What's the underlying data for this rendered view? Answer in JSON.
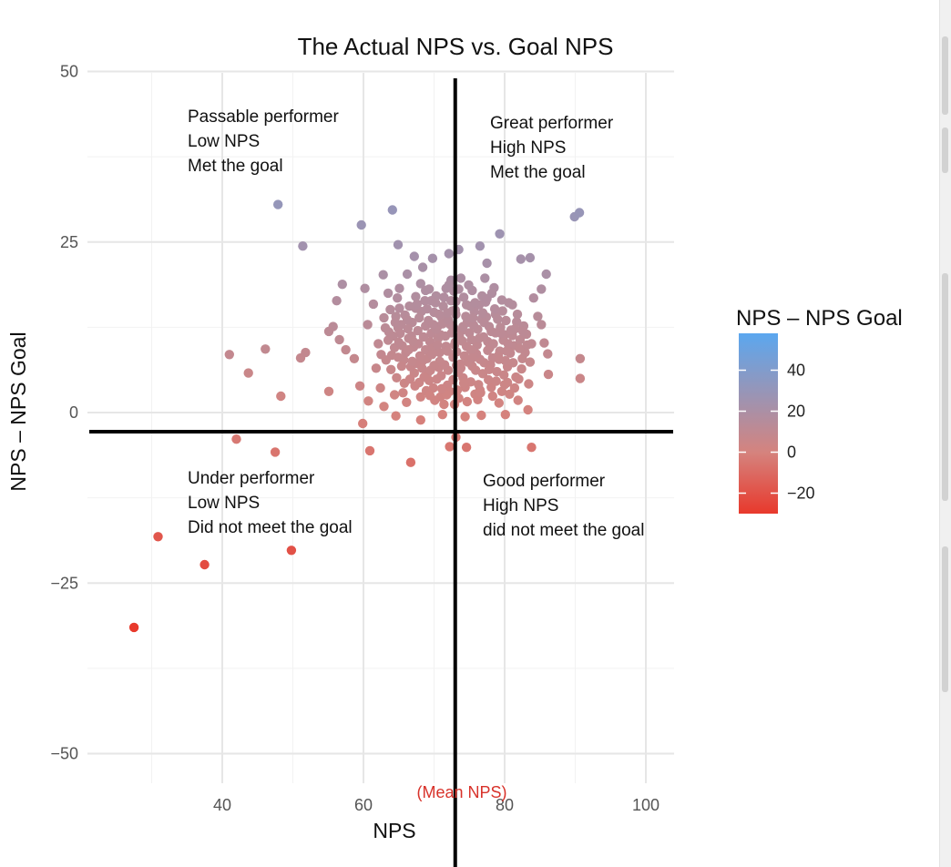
{
  "chart_data": {
    "type": "scatter",
    "title": "The Actual NPS vs. Goal NPS",
    "xlabel": "NPS",
    "ylabel": "NPS – NPS Goal",
    "xlim": [
      30,
      100
    ],
    "ylim": [
      -58,
      50
    ],
    "x_ticks": [
      40,
      60,
      80,
      100
    ],
    "y_ticks": [
      50,
      25,
      0,
      -25,
      -50
    ],
    "x_tick_labels": [
      "40",
      "60",
      "80",
      "100"
    ],
    "y_tick_labels": [
      "50",
      "25",
      "0",
      "−25",
      "−50"
    ],
    "grid": true,
    "mean_nps": 73,
    "mean_label": "(Mean NPS)",
    "horizontal_reference_y": -2.8,
    "legend": {
      "title": "NPS – NPS Goal",
      "placement": "right",
      "min": -30,
      "max": 58,
      "ticks": [
        40,
        20,
        0,
        -20
      ],
      "tick_labels": [
        "40",
        "20",
        "0",
        "−20"
      ],
      "color_low": "#e8392c",
      "color_mid": "#d5837e",
      "color_high": "#5ba7ef"
    },
    "annotations": [
      {
        "quadrant": "top-left",
        "lines": [
          "Passable performer",
          "Low NPS",
          "Met the goal"
        ]
      },
      {
        "quadrant": "top-right",
        "lines": [
          "Great performer",
          "High NPS",
          "Met the goal"
        ]
      },
      {
        "quadrant": "bottom-left",
        "lines": [
          "Under performer",
          "Low NPS",
          "Did not meet the goal"
        ]
      },
      {
        "quadrant": "bottom-right",
        "lines": [
          "Good performer",
          "High NPS",
          "did not meet the goal"
        ]
      }
    ],
    "points": [
      [
        27.5,
        -31.5
      ],
      [
        30.9,
        -18.2
      ],
      [
        37.5,
        -22.3
      ],
      [
        42,
        -3.9
      ],
      [
        47.5,
        -5.8
      ],
      [
        49.8,
        -20.2
      ],
      [
        60.9,
        -5.6
      ],
      [
        66.7,
        -7.3
      ],
      [
        72.2,
        -5
      ],
      [
        73.1,
        -3.6
      ],
      [
        74.6,
        -5.1
      ],
      [
        83.8,
        -5.1
      ],
      [
        41,
        8.5
      ],
      [
        43.7,
        5.8
      ],
      [
        46.1,
        9.3
      ],
      [
        48.3,
        2.4
      ],
      [
        51.1,
        8
      ],
      [
        51.8,
        8.8
      ],
      [
        55.1,
        3.1
      ],
      [
        47.9,
        30.5
      ],
      [
        51.4,
        24.4
      ],
      [
        59.7,
        27.5
      ],
      [
        64.1,
        29.7
      ],
      [
        64.9,
        24.6
      ],
      [
        79.3,
        26.2
      ],
      [
        89.9,
        28.7
      ],
      [
        90.6,
        29.3
      ],
      [
        67.2,
        22.9
      ],
      [
        69.8,
        22.6
      ],
      [
        72.1,
        23.3
      ],
      [
        73.5,
        23.9
      ],
      [
        76.5,
        24.4
      ],
      [
        77.5,
        21.9
      ],
      [
        82.3,
        22.5
      ],
      [
        83.6,
        22.7
      ],
      [
        90.7,
        7.9
      ],
      [
        90.7,
        5
      ],
      [
        59.5,
        3.9
      ],
      [
        60.7,
        1.7
      ],
      [
        62.9,
        0.9
      ],
      [
        64.6,
        -0.5
      ],
      [
        68.1,
        -1.1
      ],
      [
        71.2,
        -0.3
      ],
      [
        74.4,
        -0.6
      ],
      [
        76.7,
        -0.4
      ],
      [
        80.1,
        -0.3
      ],
      [
        83.3,
        0.4
      ],
      [
        59.9,
        -1.6
      ],
      [
        62.4,
        3.6
      ],
      [
        57,
        18.8
      ],
      [
        56.2,
        16.4
      ],
      [
        55.7,
        12.6
      ],
      [
        55.1,
        11.9
      ],
      [
        56.6,
        10.7
      ],
      [
        57.5,
        9.2
      ],
      [
        58.7,
        7.9
      ],
      [
        60.6,
        12.9
      ],
      [
        61.4,
        15.9
      ],
      [
        60.2,
        18.2
      ],
      [
        62.8,
        20.2
      ],
      [
        63.5,
        17.5
      ],
      [
        65.1,
        18.2
      ],
      [
        66.2,
        20.3
      ],
      [
        68.4,
        21.3
      ],
      [
        85.6,
        10.2
      ],
      [
        86.1,
        8.6
      ],
      [
        86.2,
        5.6
      ],
      [
        85.2,
        12.9
      ],
      [
        84.7,
        14.1
      ],
      [
        84.1,
        16.8
      ],
      [
        85.2,
        18.1
      ],
      [
        85.9,
        20.3
      ],
      [
        64.9,
        12.4
      ],
      [
        69.3,
        4.7
      ],
      [
        70.9,
        2.3
      ],
      [
        63.5,
        10.6
      ],
      [
        64.4,
        2.6
      ],
      [
        77.6,
        10.4
      ],
      [
        67.4,
        15.3
      ],
      [
        70.8,
        8.8
      ],
      [
        75.6,
        9.1
      ],
      [
        68.1,
        2.3
      ],
      [
        68.8,
        12.7
      ],
      [
        72.4,
        19.4
      ],
      [
        76.5,
        3.3
      ],
      [
        82.5,
        7.9
      ],
      [
        74.6,
        15.8
      ],
      [
        65.7,
        7.7
      ],
      [
        67.2,
        5.8
      ],
      [
        71.1,
        13.9
      ],
      [
        72.8,
        12.4
      ],
      [
        81.1,
        15.8
      ],
      [
        83.8,
        10.1
      ],
      [
        70.7,
        6.6
      ],
      [
        73,
        10.3
      ],
      [
        78.1,
        3.7
      ],
      [
        80.4,
        6.7
      ],
      [
        66.1,
        1.5
      ],
      [
        75.4,
        17.9
      ],
      [
        79.3,
        9
      ],
      [
        81.9,
        1.8
      ],
      [
        69.6,
        11.6
      ],
      [
        76.2,
        12.2
      ],
      [
        69.3,
        18.1
      ],
      [
        77.1,
        7.3
      ],
      [
        66.4,
        10.9
      ],
      [
        62.5,
        8.5
      ],
      [
        74.1,
        5.1
      ],
      [
        78.7,
        14.4
      ],
      [
        80,
        11.4
      ],
      [
        71.9,
        4
      ],
      [
        67.8,
        10.1
      ],
      [
        80.4,
        4.4
      ],
      [
        76.4,
        15.8
      ],
      [
        63.9,
        6.3
      ],
      [
        78.5,
        18.3
      ],
      [
        73.5,
        2.1
      ],
      [
        70.3,
        17.1
      ],
      [
        65.1,
        15.3
      ],
      [
        81.3,
        9.8
      ],
      [
        75.4,
        6.8
      ],
      [
        82.7,
        12.7
      ],
      [
        68.4,
        7.6
      ],
      [
        71.7,
        9.7
      ],
      [
        73.1,
        14.4
      ],
      [
        79.2,
        1.4
      ],
      [
        66.9,
        13.2
      ],
      [
        64.4,
        9.5
      ],
      [
        77.8,
        12.6
      ],
      [
        69.9,
        3.6
      ],
      [
        72.4,
        16.4
      ],
      [
        83.4,
        4.2
      ],
      [
        75,
        11.7
      ],
      [
        67.4,
        17
      ],
      [
        79.6,
        16.5
      ],
      [
        74.3,
        8.3
      ],
      [
        61.8,
        6.5
      ],
      [
        71.4,
        1.2
      ],
      [
        76.9,
        5.7
      ],
      [
        81.7,
        13.3
      ],
      [
        70,
        14.7
      ],
      [
        73.8,
        19.7
      ],
      [
        65.8,
        4.3
      ],
      [
        78.3,
        8
      ],
      [
        68.8,
        9.2
      ],
      [
        75.8,
        2.7
      ],
      [
        80.8,
        8.7
      ],
      [
        72,
        6.2
      ],
      [
        64.8,
        16.8
      ],
      [
        77.3,
        16.2
      ],
      [
        69.1,
        5.8
      ],
      [
        82.2,
        10.7
      ],
      [
        66.3,
        12.3
      ],
      [
        74.7,
        13.2
      ],
      [
        71.6,
        11.2
      ],
      [
        79.6,
        3.1
      ],
      [
        62.9,
        13.9
      ],
      [
        76.1,
        9.9
      ],
      [
        70.5,
        12.6
      ],
      [
        67.9,
        4.4
      ],
      [
        73.7,
        7.1
      ],
      [
        80.2,
        13.5
      ],
      [
        65.5,
        9.8
      ],
      [
        78.9,
        6
      ],
      [
        72.8,
        17.8
      ],
      [
        68.2,
        14.8
      ],
      [
        75.2,
        4.5
      ],
      [
        81.6,
        5.2
      ],
      [
        70.1,
        1.8
      ],
      [
        77.4,
        14
      ],
      [
        63.6,
        11.8
      ],
      [
        73.2,
        8.9
      ],
      [
        79.8,
        10.6
      ],
      [
        66.7,
        6.7
      ],
      [
        71.3,
        15.6
      ],
      [
        76.5,
        7.8
      ],
      [
        69.4,
        10.4
      ],
      [
        74.9,
        18.7
      ],
      [
        82.9,
        8.8
      ],
      [
        64.6,
        14.1
      ],
      [
        78.1,
        11.9
      ],
      [
        72.2,
        3.1
      ],
      [
        67.7,
        12
      ],
      [
        75.7,
        14.8
      ],
      [
        80.7,
        2.7
      ],
      [
        70.8,
        7.5
      ],
      [
        73.9,
        12
      ],
      [
        65.2,
        11.6
      ],
      [
        77.7,
        4.8
      ],
      [
        69.6,
        16.4
      ],
      [
        83.1,
        11.5
      ],
      [
        71.9,
        9
      ],
      [
        76.8,
        17.1
      ],
      [
        66,
        8.8
      ],
      [
        79,
        13.7
      ],
      [
        74.4,
        3.7
      ],
      [
        68.6,
        5.2
      ],
      [
        81.1,
        11.3
      ],
      [
        72.6,
        14.9
      ],
      [
        63.2,
        7.7
      ],
      [
        75.3,
        10.7
      ],
      [
        70.4,
        4.9
      ],
      [
        78.6,
        15.2
      ],
      [
        67.1,
        9.6
      ],
      [
        73.4,
        5.9
      ],
      [
        80.1,
        7.6
      ],
      [
        65.9,
        14.3
      ],
      [
        76.2,
        1.9
      ],
      [
        71.2,
        13
      ],
      [
        69,
        7.9
      ],
      [
        74.2,
        16.9
      ],
      [
        82.4,
        6.4
      ],
      [
        64.2,
        11.2
      ],
      [
        77.9,
        9.5
      ],
      [
        72.9,
        1.2
      ],
      [
        68.1,
        18.9
      ],
      [
        79.4,
        12.5
      ],
      [
        70.6,
        10.9
      ],
      [
        75.9,
        6.2
      ],
      [
        66.6,
        4.9
      ],
      [
        81.8,
        14.4
      ],
      [
        73.6,
        11.1
      ],
      [
        67.5,
        7.2
      ],
      [
        78.3,
        2.4
      ],
      [
        71.7,
        18.2
      ],
      [
        62.1,
        10.1
      ],
      [
        76.7,
        13.7
      ],
      [
        69.8,
        9.4
      ],
      [
        74.8,
        7.4
      ],
      [
        80.5,
        10.1
      ],
      [
        65.4,
        6.8
      ],
      [
        72.3,
        12.9
      ],
      [
        77.2,
        19.7
      ],
      [
        68.9,
        3.2
      ],
      [
        83.6,
        7.4
      ],
      [
        70.2,
        16.1
      ],
      [
        75.6,
        12.8
      ],
      [
        66.8,
        11.2
      ],
      [
        79.9,
        5.5
      ],
      [
        73.1,
        16.3
      ],
      [
        64,
        8.4
      ],
      [
        71,
        5.4
      ],
      [
        78,
        7
      ],
      [
        69.2,
        13.5
      ],
      [
        81.4,
        3.6
      ],
      [
        74,
        10.5
      ],
      [
        67.6,
        15.9
      ],
      [
        76.3,
        4.1
      ],
      [
        72.7,
        8.1
      ],
      [
        82.1,
        9.4
      ],
      [
        65.6,
        2.9
      ],
      [
        77.5,
        16.7
      ],
      [
        70.9,
        11.4
      ],
      [
        74.5,
        14.1
      ],
      [
        68.5,
        11.1
      ],
      [
        79.1,
        8.3
      ],
      [
        71.5,
        7
      ],
      [
        75.1,
        15.6
      ],
      [
        66.2,
        13.6
      ],
      [
        80.9,
        12.1
      ],
      [
        73.3,
        3.3
      ],
      [
        69.5,
        6.2
      ],
      [
        77,
        11.1
      ],
      [
        64.7,
        5.1
      ],
      [
        72.1,
        18.7
      ],
      [
        78.8,
        4.6
      ],
      [
        70.7,
        14.4
      ],
      [
        76,
        8.6
      ],
      [
        67.3,
        3.9
      ],
      [
        82.6,
        11.9
      ],
      [
        74.6,
        9.7
      ],
      [
        68.7,
        16.4
      ],
      [
        73.8,
        6.5
      ],
      [
        79.7,
        14.9
      ],
      [
        65.3,
        12.9
      ],
      [
        71.8,
        2.6
      ],
      [
        75.5,
        13.9
      ],
      [
        69.7,
        8.5
      ],
      [
        80.3,
        9
      ],
      [
        72.5,
        11.7
      ],
      [
        66.5,
        15.6
      ],
      [
        77.8,
        6.3
      ],
      [
        63.1,
        12.4
      ],
      [
        74.2,
        4.3
      ],
      [
        70.3,
        12.2
      ],
      [
        78.4,
        10.1
      ],
      [
        68.3,
        6.5
      ],
      [
        81.2,
        7.3
      ],
      [
        73,
        15
      ],
      [
        67,
        10.5
      ],
      [
        76.6,
        2.9
      ],
      [
        71.4,
        16.9
      ],
      [
        79.5,
        11.6
      ],
      [
        64.9,
        8.1
      ],
      [
        75.2,
        9.2
      ],
      [
        69,
        15.2
      ],
      [
        82,
        4.9
      ],
      [
        72.9,
        9.9
      ],
      [
        77.1,
        13.2
      ],
      [
        66.9,
        7.5
      ],
      [
        80.6,
        16.1
      ],
      [
        74.1,
        12.6
      ],
      [
        70,
        6.9
      ],
      [
        78.2,
        17.5
      ],
      [
        65,
        10.3
      ],
      [
        73.5,
        18.1
      ],
      [
        68,
        8.3
      ],
      [
        76.4,
        10.9
      ],
      [
        71.1,
        3.5
      ],
      [
        79.2,
        7.8
      ],
      [
        63.8,
        15.1
      ],
      [
        75.8,
        16.1
      ],
      [
        69.4,
        2.5
      ],
      [
        72,
        13.6
      ],
      [
        81.5,
        12.3
      ],
      [
        67.9,
        13.9
      ],
      [
        74.7,
        1.6
      ],
      [
        77.6,
        9.1
      ],
      [
        70.5,
        9.9
      ],
      [
        83.2,
        9.9
      ],
      [
        66.4,
        9.2
      ],
      [
        73.2,
        6.9
      ],
      [
        78.7,
        11.7
      ],
      [
        68.8,
        17.9
      ],
      [
        75.4,
        8
      ],
      [
        71.9,
        14.6
      ],
      [
        80,
        4.1
      ],
      [
        64.5,
        13.2
      ],
      [
        76.9,
        14.6
      ],
      [
        69.9,
        12.9
      ],
      [
        72.7,
        4.8
      ]
    ]
  },
  "scroll_strip": {
    "color": "#d2d2d2"
  }
}
